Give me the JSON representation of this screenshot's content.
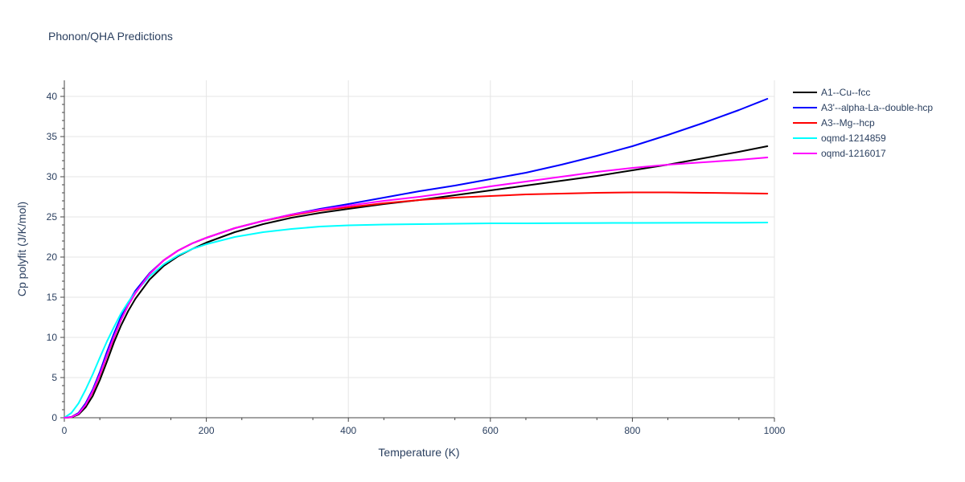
{
  "chart_data": {
    "type": "line",
    "title": "Phonon/QHA Predictions",
    "xlabel": "Temperature (K)",
    "ylabel": "Cp polyfit (J/K/mol)",
    "xlim": [
      0,
      1000
    ],
    "ylim": [
      0,
      42
    ],
    "xticks": [
      0,
      200,
      400,
      600,
      800,
      1000
    ],
    "yticks": [
      0,
      5,
      10,
      15,
      20,
      25,
      30,
      35,
      40
    ],
    "grid": true,
    "legend_position": "top-right",
    "series": [
      {
        "name": "A1--Cu--fcc",
        "color": "#000000",
        "x": [
          0,
          10,
          20,
          30,
          40,
          50,
          60,
          70,
          80,
          90,
          100,
          120,
          140,
          160,
          180,
          200,
          240,
          280,
          320,
          360,
          400,
          450,
          500,
          550,
          600,
          650,
          700,
          750,
          800,
          850,
          900,
          950,
          990
        ],
        "y": [
          0,
          0.05,
          0.4,
          1.3,
          2.7,
          4.7,
          7.0,
          9.4,
          11.5,
          13.3,
          14.8,
          17.2,
          18.9,
          20.1,
          21.0,
          21.8,
          23.1,
          24.1,
          24.9,
          25.5,
          26.0,
          26.6,
          27.1,
          27.7,
          28.3,
          28.9,
          29.5,
          30.1,
          30.8,
          31.5,
          32.3,
          33.1,
          33.8
        ]
      },
      {
        "name": "A3'--alpha-La--double-hcp",
        "color": "#0000ff",
        "x": [
          0,
          10,
          20,
          30,
          40,
          50,
          60,
          70,
          80,
          90,
          100,
          120,
          140,
          160,
          180,
          200,
          240,
          280,
          320,
          360,
          400,
          450,
          500,
          550,
          600,
          650,
          700,
          750,
          800,
          850,
          900,
          950,
          990
        ],
        "y": [
          0,
          0.1,
          0.6,
          1.8,
          3.5,
          5.7,
          8.2,
          10.5,
          12.6,
          14.3,
          15.8,
          18.0,
          19.6,
          20.8,
          21.7,
          22.4,
          23.6,
          24.5,
          25.3,
          26.0,
          26.6,
          27.4,
          28.2,
          28.9,
          29.7,
          30.5,
          31.5,
          32.6,
          33.8,
          35.2,
          36.7,
          38.3,
          39.7
        ]
      },
      {
        "name": "A3--Mg--hcp",
        "color": "#ff0000",
        "x": [
          0,
          10,
          20,
          30,
          40,
          50,
          60,
          70,
          80,
          90,
          100,
          120,
          140,
          160,
          180,
          200,
          240,
          280,
          320,
          360,
          400,
          450,
          500,
          550,
          600,
          650,
          700,
          750,
          800,
          850,
          900,
          950,
          990
        ],
        "y": [
          0,
          0.08,
          0.5,
          1.6,
          3.2,
          5.3,
          7.7,
          10.0,
          12.2,
          14.0,
          15.5,
          17.9,
          19.6,
          20.8,
          21.7,
          22.4,
          23.6,
          24.5,
          25.2,
          25.8,
          26.2,
          26.7,
          27.1,
          27.4,
          27.6,
          27.8,
          27.9,
          28.0,
          28.05,
          28.05,
          28.0,
          27.95,
          27.9
        ]
      },
      {
        "name": "oqmd-1214859",
        "color": "#00ffff",
        "x": [
          0,
          10,
          20,
          30,
          40,
          50,
          60,
          70,
          80,
          90,
          100,
          120,
          140,
          160,
          180,
          200,
          240,
          280,
          320,
          360,
          400,
          450,
          500,
          550,
          600,
          650,
          700,
          750,
          800,
          850,
          900,
          950,
          990
        ],
        "y": [
          0,
          0.6,
          1.8,
          3.5,
          5.4,
          7.5,
          9.5,
          11.3,
          13.0,
          14.4,
          15.6,
          17.6,
          19.1,
          20.2,
          21.0,
          21.6,
          22.5,
          23.1,
          23.5,
          23.8,
          23.95,
          24.05,
          24.1,
          24.15,
          24.2,
          24.2,
          24.22,
          24.24,
          24.25,
          24.26,
          24.27,
          24.28,
          24.3
        ]
      },
      {
        "name": "oqmd-1216017",
        "color": "#ff00ff",
        "x": [
          0,
          10,
          20,
          30,
          40,
          50,
          60,
          70,
          80,
          90,
          100,
          120,
          140,
          160,
          180,
          200,
          240,
          280,
          320,
          360,
          400,
          450,
          500,
          550,
          600,
          650,
          700,
          750,
          800,
          850,
          900,
          950,
          990
        ],
        "y": [
          0,
          0.08,
          0.5,
          1.6,
          3.3,
          5.4,
          7.8,
          10.1,
          12.2,
          14.0,
          15.5,
          17.9,
          19.6,
          20.8,
          21.7,
          22.4,
          23.6,
          24.5,
          25.3,
          25.9,
          26.4,
          27.0,
          27.5,
          28.1,
          28.8,
          29.4,
          30.0,
          30.6,
          31.1,
          31.5,
          31.8,
          32.1,
          32.4
        ]
      }
    ]
  }
}
